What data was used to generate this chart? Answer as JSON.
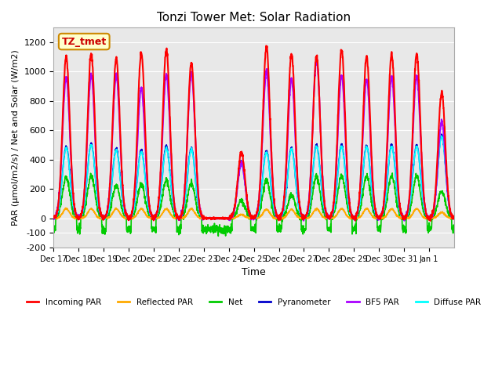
{
  "title": "Tonzi Tower Met: Solar Radiation",
  "xlabel": "Time",
  "ylabel": "PAR (μmol/m2/s) / Net and Solar (W/m2)",
  "ylim": [
    -200,
    1300
  ],
  "background_color": "#ffffff",
  "plot_bg_color": "#e8e8e8",
  "label_box_text": "TZ_tmet",
  "label_box_facecolor": "#ffffcc",
  "label_box_edgecolor": "#cc8800",
  "series": {
    "incoming_par": {
      "color": "#ff0000",
      "label": "Incoming PAR",
      "lw": 1.5
    },
    "reflected_par": {
      "color": "#ffaa00",
      "label": "Reflected PAR",
      "lw": 1.2
    },
    "net": {
      "color": "#00cc00",
      "label": "Net",
      "lw": 1.2
    },
    "pyranometer": {
      "color": "#0000cc",
      "label": "Pyranometer",
      "lw": 1.2
    },
    "bf5_par": {
      "color": "#aa00ff",
      "label": "BF5 PAR",
      "lw": 1.5
    },
    "diffuse_par": {
      "color": "#00ffff",
      "label": "Diffuse PAR",
      "lw": 1.2
    }
  },
  "xtick_labels": [
    "Dec 17",
    "Dec 18",
    "Dec 19",
    "Dec 20",
    "Dec 21",
    "Dec 22",
    "Dec 23",
    "Dec 24",
    "Dec 25",
    "Dec 26",
    "Dec 27",
    "Dec 28",
    "Dec 29",
    "Dec 30",
    "Dec 31",
    "Jan 1"
  ],
  "xtick_positions": [
    0,
    1,
    2,
    3,
    4,
    5,
    6,
    7,
    8,
    9,
    10,
    11,
    12,
    13,
    14,
    15
  ],
  "ytick_values": [
    -200,
    -100,
    0,
    200,
    400,
    600,
    800,
    1000,
    1200
  ],
  "day_peaks": {
    "incoming_par": [
      1100,
      1120,
      1090,
      1130,
      1150,
      1060,
      0,
      450,
      1170,
      1120,
      1110,
      1150,
      1100,
      1120,
      1120,
      860
    ],
    "bf5_par": [
      960,
      980,
      970,
      890,
      980,
      990,
      0,
      380,
      1000,
      950,
      1080,
      970,
      950,
      960,
      970,
      660
    ],
    "diffuse_par": [
      480,
      500,
      465,
      455,
      480,
      470,
      0,
      370,
      450,
      470,
      490,
      490,
      485,
      490,
      490,
      560
    ],
    "pyranometer": [
      490,
      510,
      475,
      465,
      495,
      480,
      0,
      385,
      460,
      480,
      500,
      500,
      495,
      500,
      500,
      570
    ],
    "reflected_par": [
      65,
      65,
      65,
      65,
      65,
      65,
      0,
      25,
      60,
      60,
      65,
      65,
      65,
      65,
      65,
      40
    ],
    "net": [
      280,
      290,
      225,
      235,
      260,
      240,
      0,
      120,
      260,
      160,
      285,
      290,
      285,
      290,
      290,
      185
    ]
  },
  "n_days": 16,
  "pts_per_day": 144,
  "night_net": -75,
  "night_noise": 15
}
